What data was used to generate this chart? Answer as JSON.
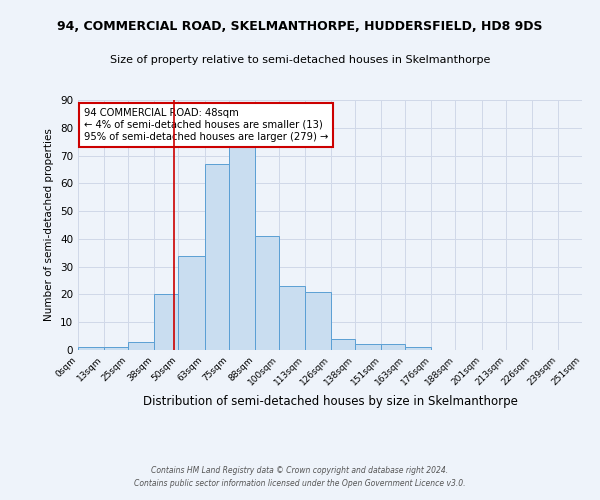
{
  "title1": "94, COMMERCIAL ROAD, SKELMANTHORPE, HUDDERSFIELD, HD8 9DS",
  "title2": "Size of property relative to semi-detached houses in Skelmanthorpe",
  "xlabel": "Distribution of semi-detached houses by size in Skelmanthorpe",
  "ylabel": "Number of semi-detached properties",
  "bin_edges": [
    0,
    13,
    25,
    38,
    50,
    63,
    75,
    88,
    100,
    113,
    126,
    138,
    151,
    163,
    176,
    188,
    201,
    213,
    226,
    239,
    251
  ],
  "bin_labels": [
    "0sqm",
    "13sqm",
    "25sqm",
    "38sqm",
    "50sqm",
    "63sqm",
    "75sqm",
    "88sqm",
    "100sqm",
    "113sqm",
    "126sqm",
    "138sqm",
    "151sqm",
    "163sqm",
    "176sqm",
    "188sqm",
    "201sqm",
    "213sqm",
    "226sqm",
    "239sqm",
    "251sqm"
  ],
  "counts": [
    1,
    1,
    3,
    20,
    34,
    67,
    74,
    41,
    23,
    21,
    4,
    2,
    2,
    1,
    0,
    0,
    0,
    0,
    0,
    0
  ],
  "bar_facecolor": "#c9ddf0",
  "bar_edgecolor": "#5a9fd4",
  "vline_x": 48,
  "vline_color": "#cc0000",
  "annotation_text": "94 COMMERCIAL ROAD: 48sqm\n← 4% of semi-detached houses are smaller (13)\n95% of semi-detached houses are larger (279) →",
  "annotation_box_edgecolor": "#cc0000",
  "annotation_box_facecolor": "#ffffff",
  "ylim": [
    0,
    90
  ],
  "yticks": [
    0,
    10,
    20,
    30,
    40,
    50,
    60,
    70,
    80,
    90
  ],
  "grid_color": "#d0d8e8",
  "background_color": "#eef3fa",
  "footer1": "Contains HM Land Registry data © Crown copyright and database right 2024.",
  "footer2": "Contains public sector information licensed under the Open Government Licence v3.0."
}
